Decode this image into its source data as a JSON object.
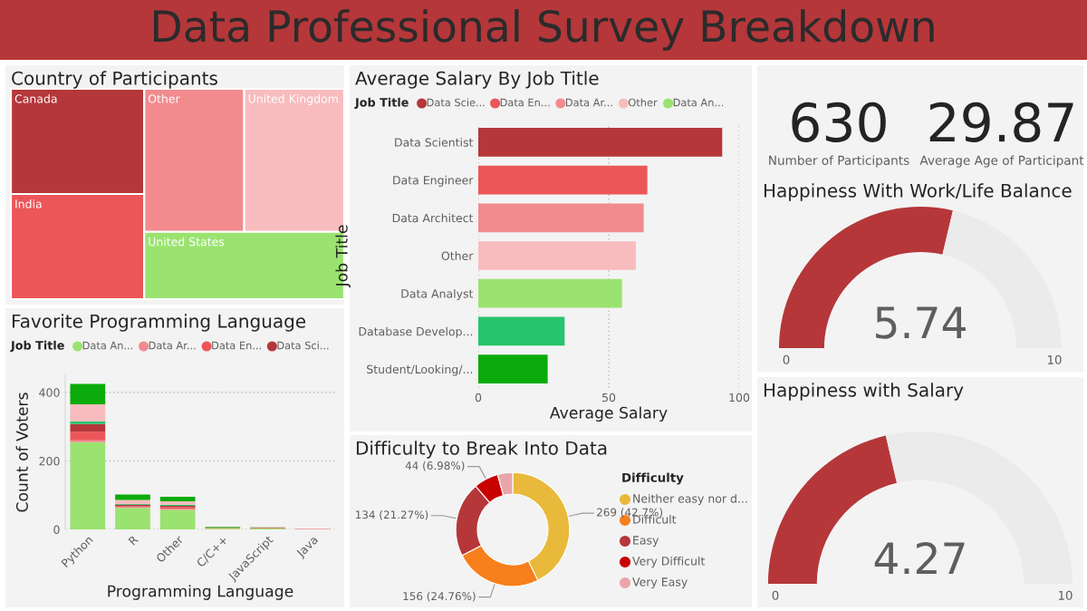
{
  "chart_data": [
    {
      "type": "other",
      "title": "Data Professional Survey Breakdown"
    },
    {
      "type": "other",
      "title": "Country of Participants",
      "categories": [
        "Canada",
        "India",
        "Other",
        "United Kingdom",
        "United States"
      ],
      "colors": [
        "#b5373a",
        "#ec5658",
        "#f28b8e",
        "#f8bcbe",
        "#9be370"
      ]
    },
    {
      "type": "bar",
      "orientation": "horizontal",
      "title": "Average Salary By Job Title",
      "legend_title": "Job Title",
      "legend": "top",
      "xlabel": "Average Salary",
      "ylabel": "Job Title",
      "categories": [
        "Data Scientist",
        "Data Engineer",
        "Data Architect",
        "Other",
        "Data Analyst",
        "Database Develop...",
        "Student/Looking/..."
      ],
      "series": [
        {
          "name": "Data Scie...",
          "color": "#b5373a",
          "values": [
            93.5,
            null,
            null,
            null,
            null,
            null,
            null
          ]
        },
        {
          "name": "Data En...",
          "color": "#ec5658",
          "values": [
            null,
            64.8,
            null,
            null,
            null,
            null,
            null
          ]
        },
        {
          "name": "Data Ar...",
          "color": "#f28b8e",
          "values": [
            null,
            null,
            63.4,
            null,
            null,
            null,
            null
          ]
        },
        {
          "name": "Other",
          "color": "#f8bcbe",
          "values": [
            null,
            null,
            null,
            60.4,
            null,
            null,
            null
          ]
        },
        {
          "name": "Data An...",
          "color": "#9be370",
          "values": [
            null,
            null,
            null,
            null,
            55.1,
            null,
            null
          ]
        },
        {
          "color": "#26c46c",
          "values": [
            null,
            null,
            null,
            null,
            null,
            33.1,
            null
          ]
        },
        {
          "color": "#0aab0a",
          "values": [
            null,
            null,
            null,
            null,
            null,
            null,
            26.6
          ]
        }
      ],
      "xlim": [
        0,
        100
      ],
      "xticks": [
        0,
        50,
        100
      ],
      "grid": "x"
    },
    {
      "type": "other",
      "categories": [
        "Number of Participants",
        "Average Age of Participant"
      ],
      "values": [
        630,
        29.87
      ],
      "data_labels": true
    },
    {
      "type": "donut",
      "title": "Happiness With Work/Life Balance",
      "categories": [
        null,
        null
      ],
      "values": [
        57.4,
        42.6
      ],
      "colors": [
        "#b5373a",
        "#ebebeb"
      ],
      "annotations": [
        "5.74",
        "0",
        "10"
      ]
    },
    {
      "type": "bar",
      "stacked": true,
      "title": "Favorite Programming Language",
      "legend_title": "Job Title",
      "legend": "top",
      "xlabel": "Programming Language",
      "ylabel": "Count of Voters",
      "categories": [
        "Python",
        "R",
        "Other",
        "C/C++",
        "JavaScript",
        "Java"
      ],
      "series": [
        {
          "name": "Data An...",
          "color": "#9be370",
          "values": [
            255,
            63,
            57,
            4,
            3,
            0
          ]
        },
        {
          "name": "Data Ar...",
          "color": "#f28b8e",
          "values": [
            5,
            2,
            3,
            0,
            0,
            0
          ]
        },
        {
          "name": "Data En...",
          "color": "#ec5658",
          "values": [
            25,
            3,
            5,
            1,
            2,
            1
          ]
        },
        {
          "name": "Data Sci...",
          "color": "#b5373a",
          "values": [
            23,
            4,
            4,
            0,
            0,
            0
          ]
        },
        {
          "color": "#26c46c",
          "values": [
            7,
            2,
            3,
            0,
            0,
            0
          ]
        },
        {
          "color": "#f8bcbe",
          "values": [
            50,
            12,
            10,
            0,
            0,
            1
          ]
        },
        {
          "color": "#0aab0a",
          "values": [
            60,
            16,
            13,
            2,
            1,
            0
          ]
        }
      ],
      "ylim": [
        0,
        450
      ],
      "yticks": [
        0,
        200,
        400
      ],
      "grid": "y"
    },
    {
      "type": "donut",
      "title": "Difficulty to Break Into Data",
      "legend_title": "Difficulty",
      "legend": "right",
      "categories": [
        "Neither easy nor d...",
        "Difficult",
        "Easy",
        "Very Difficult",
        "Very Easy"
      ],
      "values": [
        269,
        156,
        134,
        44,
        27
      ],
      "colors": [
        "#e8b93a",
        "#f77f1c",
        "#b5373a",
        "#c80000",
        "#e8a6ab"
      ],
      "value_labels": [
        "269 (42.7%)",
        "156 (24.76%)",
        "134 (21.27%)",
        "44 (6.98%)",
        null
      ]
    },
    {
      "type": "donut",
      "title": "Happiness with Salary",
      "categories": [
        null,
        null
      ],
      "values": [
        42.7,
        57.3
      ],
      "colors": [
        "#b5373a",
        "#ebebeb"
      ],
      "annotations": [
        "4.27",
        "0",
        "10"
      ]
    }
  ]
}
